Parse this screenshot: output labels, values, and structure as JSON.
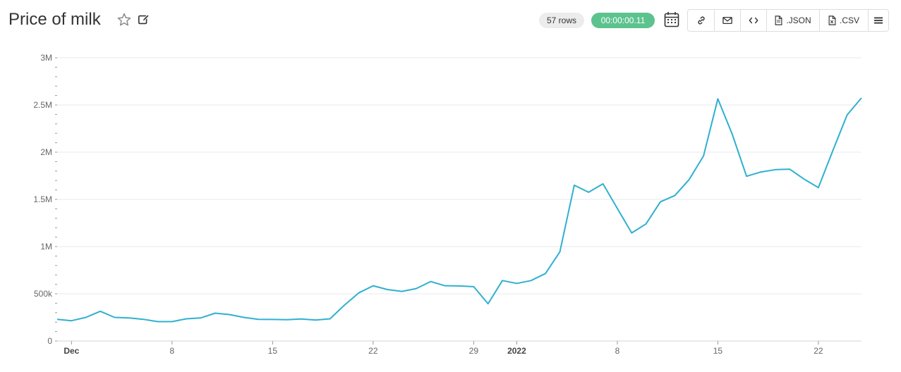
{
  "header": {
    "title": "Price of milk",
    "rows_badge": "57 rows",
    "time_badge": "00:00:00.11",
    "buttons": {
      "link_icon": "link-icon",
      "email_icon": "mail-icon",
      "embed_icon": "code-icon",
      "json_label": ".JSON",
      "csv_label": ".CSV",
      "menu_icon": "menu-icon"
    },
    "icons": {
      "favorite": "star-icon",
      "edit": "edit-icon",
      "calendar": "calendar-icon"
    }
  },
  "colors": {
    "line": "#2fb0cf",
    "badge_time": "#5cc38e",
    "badge_rows": "#ececec",
    "grid": "#e6e9ef"
  },
  "chart_data": {
    "type": "line",
    "title": "",
    "xlabel": "",
    "ylabel": "",
    "ylim": [
      0,
      3000000
    ],
    "y_ticks": [
      "0",
      "500k",
      "1M",
      "1.5M",
      "2M",
      "2.5M",
      "3M"
    ],
    "y_tick_values": [
      0,
      500000,
      1000000,
      1500000,
      2000000,
      2500000,
      3000000
    ],
    "x_range": [
      "2021-11-30",
      "2022-01-25"
    ],
    "x_ticks": [
      {
        "date": "2021-12-01",
        "label": "Dec",
        "bold": true
      },
      {
        "date": "2021-12-08",
        "label": "8",
        "bold": false
      },
      {
        "date": "2021-12-15",
        "label": "15",
        "bold": false
      },
      {
        "date": "2021-12-22",
        "label": "22",
        "bold": false
      },
      {
        "date": "2021-12-29",
        "label": "29",
        "bold": false
      },
      {
        "date": "2022-01-01",
        "label": "2022",
        "bold": true
      },
      {
        "date": "2022-01-08",
        "label": "8",
        "bold": false
      },
      {
        "date": "2022-01-15",
        "label": "15",
        "bold": false
      },
      {
        "date": "2022-01-22",
        "label": "22",
        "bold": false
      }
    ],
    "grid": true,
    "series": [
      {
        "x": [
          "2021-11-30",
          "2021-12-01",
          "2021-12-02",
          "2021-12-03",
          "2021-12-04",
          "2021-12-05",
          "2021-12-06",
          "2021-12-07",
          "2021-12-08",
          "2021-12-09",
          "2021-12-10",
          "2021-12-11",
          "2021-12-12",
          "2021-12-13",
          "2021-12-14",
          "2021-12-15",
          "2021-12-16",
          "2021-12-17",
          "2021-12-18",
          "2021-12-19",
          "2021-12-20",
          "2021-12-21",
          "2021-12-22",
          "2021-12-23",
          "2021-12-24",
          "2021-12-25",
          "2021-12-26",
          "2021-12-27",
          "2021-12-28",
          "2021-12-29",
          "2021-12-30",
          "2021-12-31",
          "2022-01-01",
          "2022-01-02",
          "2022-01-03",
          "2022-01-04",
          "2022-01-05",
          "2022-01-06",
          "2022-01-07",
          "2022-01-08",
          "2022-01-09",
          "2022-01-10",
          "2022-01-11",
          "2022-01-12",
          "2022-01-13",
          "2022-01-14",
          "2022-01-15",
          "2022-01-16",
          "2022-01-17",
          "2022-01-18",
          "2022-01-19",
          "2022-01-20",
          "2022-01-21",
          "2022-01-22",
          "2022-01-23",
          "2022-01-24",
          "2022-01-25"
        ],
        "values": [
          230000,
          215000,
          250000,
          315000,
          250000,
          245000,
          230000,
          205000,
          205000,
          235000,
          245000,
          295000,
          280000,
          250000,
          230000,
          228000,
          226000,
          233000,
          222000,
          235000,
          380000,
          510000,
          585000,
          545000,
          525000,
          555000,
          630000,
          585000,
          583000,
          575000,
          395000,
          640000,
          610000,
          640000,
          715000,
          945000,
          1650000,
          1575000,
          1665000,
          1405000,
          1145000,
          1240000,
          1475000,
          1540000,
          1710000,
          1960000,
          2565000,
          2190000,
          1745000,
          1790000,
          1815000,
          1820000,
          1715000,
          1625000,
          2015000,
          2395000,
          2575000
        ]
      }
    ]
  }
}
